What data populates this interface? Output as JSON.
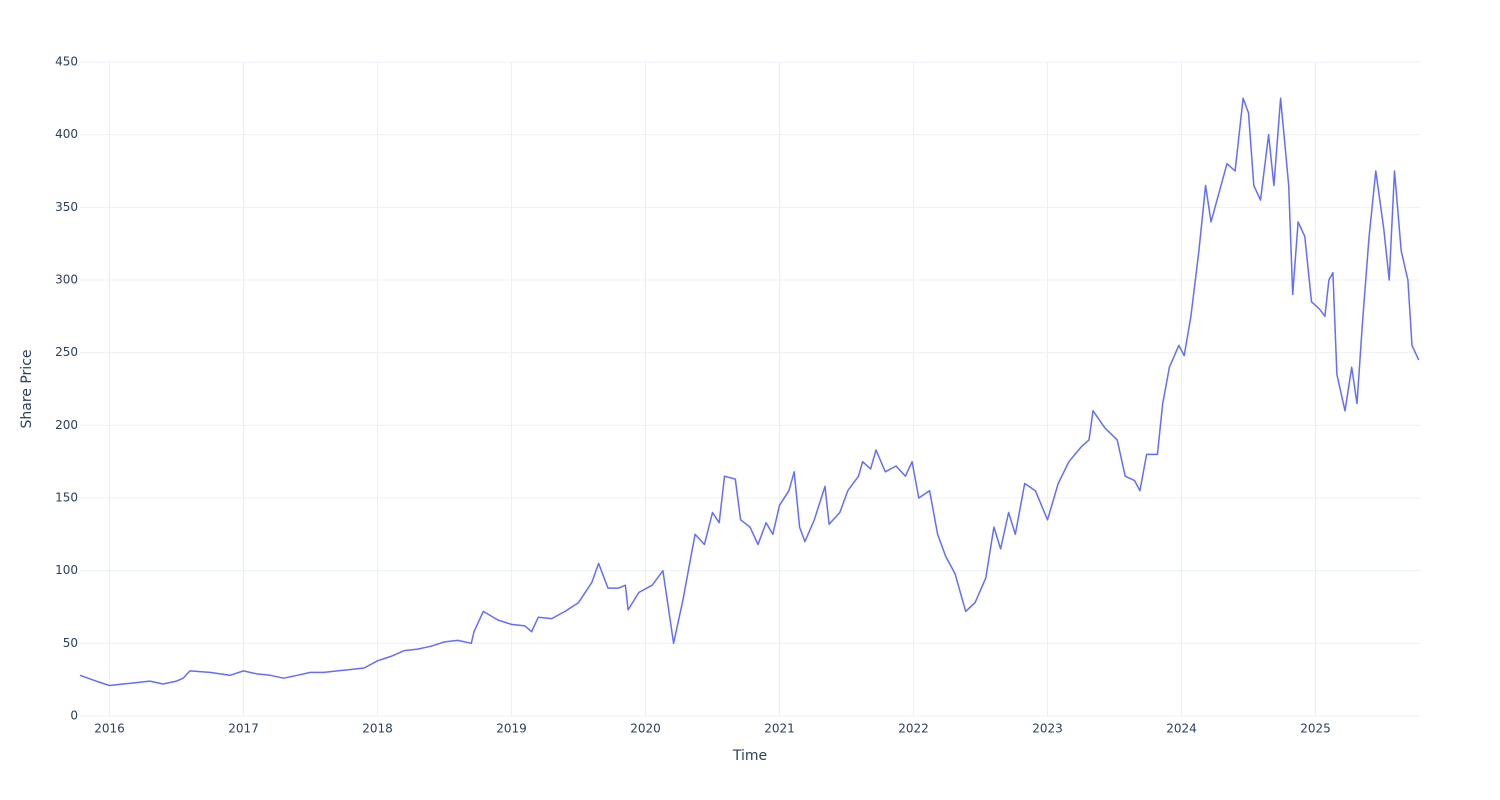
{
  "chart_data": {
    "type": "line",
    "x_label": "Time",
    "y_label": "Share Price",
    "xlim": [
      2015.78,
      2025.78
    ],
    "xticks": [
      2016,
      2017,
      2018,
      2019,
      2020,
      2021,
      2022,
      2023,
      2024,
      2025
    ],
    "ylim": [
      0,
      450
    ],
    "yticks": [
      0,
      50,
      100,
      150,
      200,
      250,
      300,
      350,
      400,
      450
    ],
    "grid": true,
    "series": [
      {
        "name": "Share Price",
        "color": "#636efa",
        "x": [
          2015.78,
          2015.9,
          2016.0,
          2016.1,
          2016.2,
          2016.3,
          2016.4,
          2016.5,
          2016.55,
          2016.6,
          2016.75,
          2016.9,
          2017.0,
          2017.1,
          2017.2,
          2017.3,
          2017.4,
          2017.5,
          2017.6,
          2017.7,
          2017.8,
          2017.9,
          2018.0,
          2018.1,
          2018.2,
          2018.3,
          2018.4,
          2018.5,
          2018.6,
          2018.7,
          2018.72,
          2018.79,
          2018.9,
          2019.0,
          2019.1,
          2019.15,
          2019.2,
          2019.3,
          2019.4,
          2019.5,
          2019.6,
          2019.65,
          2019.72,
          2019.8,
          2019.85,
          2019.87,
          2019.95,
          2020.05,
          2020.13,
          2020.21,
          2020.28,
          2020.34,
          2020.37,
          2020.44,
          2020.5,
          2020.55,
          2020.59,
          2020.67,
          2020.71,
          2020.78,
          2020.84,
          2020.9,
          2020.95,
          2021.0,
          2021.07,
          2021.11,
          2021.15,
          2021.19,
          2021.26,
          2021.34,
          2021.37,
          2021.45,
          2021.51,
          2021.59,
          2021.62,
          2021.68,
          2021.72,
          2021.79,
          2021.87,
          2021.94,
          2021.99,
          2022.04,
          2022.12,
          2022.18,
          2022.24,
          2022.31,
          2022.39,
          2022.46,
          2022.54,
          2022.6,
          2022.65,
          2022.71,
          2022.76,
          2022.83,
          2022.91,
          2023.0,
          2023.08,
          2023.16,
          2023.25,
          2023.31,
          2023.34,
          2023.43,
          2023.52,
          2023.58,
          2023.65,
          2023.69,
          2023.74,
          2023.82,
          2023.86,
          2023.91,
          2023.98,
          2024.02,
          2024.07,
          2024.13,
          2024.18,
          2024.22,
          2024.28,
          2024.34,
          2024.4,
          2024.46,
          2024.5,
          2024.54,
          2024.59,
          2024.65,
          2024.69,
          2024.74,
          2024.8,
          2024.83,
          2024.87,
          2024.92,
          2024.97,
          2025.03,
          2025.07,
          2025.1,
          2025.13,
          2025.16,
          2025.22,
          2025.27,
          2025.31,
          2025.35,
          2025.4,
          2025.45,
          2025.51,
          2025.55,
          2025.59,
          2025.64,
          2025.69,
          2025.72,
          2025.77
        ],
        "values": [
          28,
          24,
          21,
          22,
          23,
          24,
          22,
          24,
          26,
          31,
          30,
          28,
          31,
          29,
          28,
          26,
          28,
          30,
          30,
          31,
          32,
          33,
          38,
          41,
          45,
          46,
          48,
          51,
          52,
          50,
          58,
          72,
          66,
          63,
          62,
          58,
          68,
          67,
          72,
          78,
          92,
          105,
          88,
          88,
          90,
          73,
          85,
          90,
          100,
          50,
          80,
          110,
          125,
          118,
          140,
          133,
          165,
          163,
          135,
          130,
          118,
          133,
          125,
          145,
          155,
          168,
          130,
          120,
          135,
          158,
          132,
          140,
          155,
          165,
          175,
          170,
          183,
          168,
          172,
          165,
          175,
          150,
          155,
          125,
          110,
          98,
          72,
          78,
          95,
          130,
          115,
          140,
          125,
          160,
          155,
          135,
          160,
          175,
          185,
          190,
          210,
          198,
          190,
          165,
          162,
          155,
          180,
          180,
          215,
          240,
          255,
          248,
          275,
          320,
          365,
          340,
          360,
          380,
          375,
          425,
          415,
          365,
          355,
          400,
          365,
          425,
          365,
          290,
          340,
          330,
          285,
          280,
          275,
          300,
          305,
          235,
          210,
          240,
          215,
          270,
          330,
          375,
          335,
          300,
          375,
          320,
          300,
          255,
          245
        ]
      }
    ]
  }
}
